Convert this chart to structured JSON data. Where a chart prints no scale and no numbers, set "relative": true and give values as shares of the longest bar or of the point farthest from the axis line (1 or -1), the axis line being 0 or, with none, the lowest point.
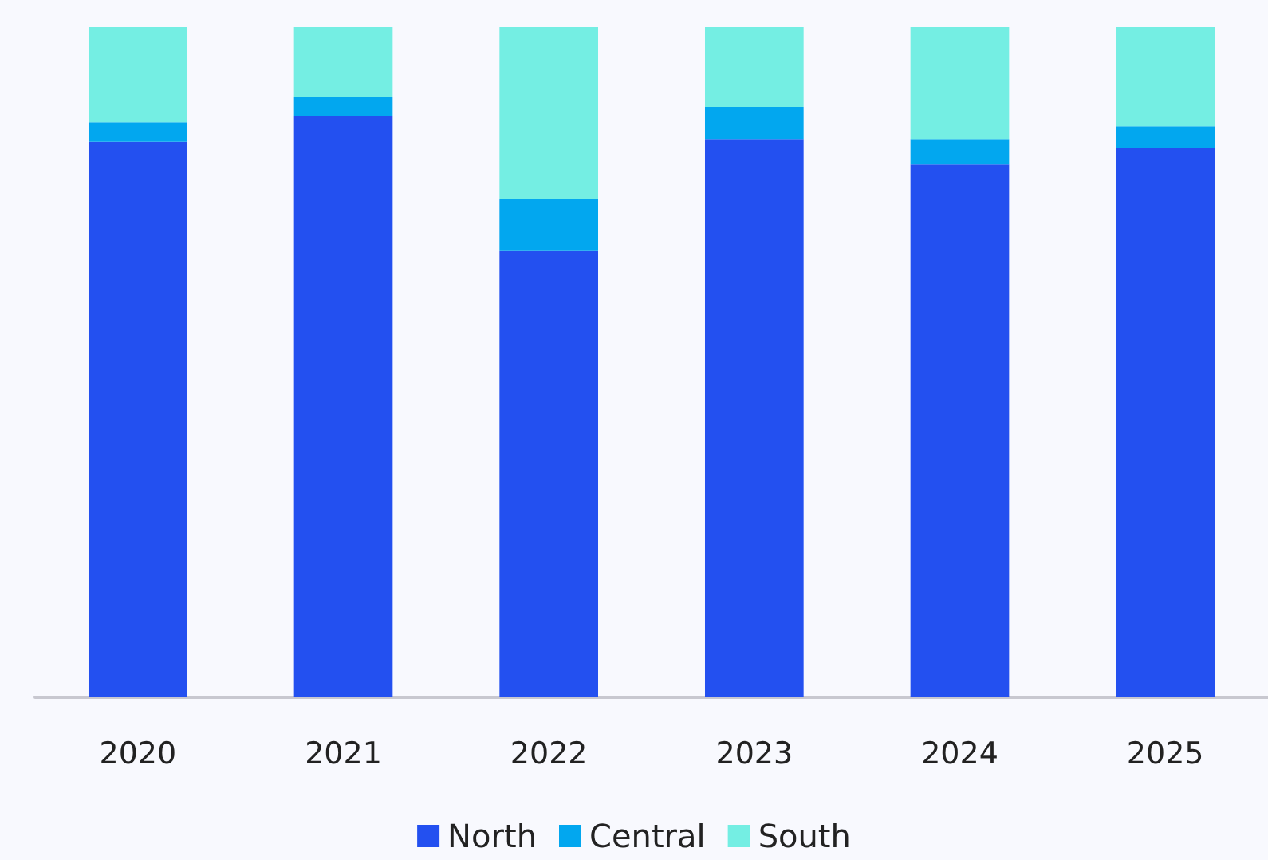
{
  "chart_data": {
    "type": "bar",
    "stacked": true,
    "relative": true,
    "legend": "bottom",
    "categories": [
      "2020",
      "2021",
      "2022",
      "2023",
      "2024",
      "2025"
    ],
    "series": [
      {
        "name": "North",
        "color": "#2350f0",
        "values": [
          0.829,
          0.867,
          0.667,
          0.833,
          0.795,
          0.819
        ]
      },
      {
        "name": "Central",
        "color": "#02a7ef",
        "values": [
          0.029,
          0.029,
          0.076,
          0.048,
          0.038,
          0.033
        ]
      },
      {
        "name": "South",
        "color": "#74eee3",
        "values": [
          0.142,
          0.104,
          0.257,
          0.119,
          0.167,
          0.148
        ]
      }
    ]
  }
}
